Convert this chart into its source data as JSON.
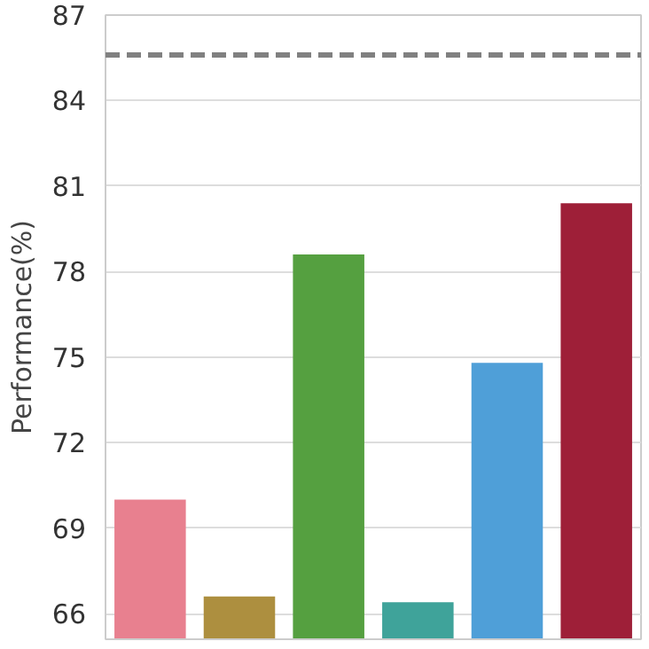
{
  "chart_data": {
    "type": "bar",
    "ylabel": "Performance(%)",
    "categories": [
      null,
      null,
      null,
      null,
      null,
      null
    ],
    "values": [
      70.0,
      66.6,
      78.6,
      66.4,
      74.8,
      80.4
    ],
    "colors": [
      "#e8808f",
      "#ad8f3f",
      "#55a040",
      "#3fa39a",
      "#4f9fd8",
      "#9e1f38"
    ],
    "ylim": [
      65.1,
      87
    ],
    "yticks": [
      66,
      69,
      72,
      75,
      78,
      81,
      84,
      87
    ],
    "grid": "y",
    "ref_lines": [
      {
        "axis": "y",
        "value": 85.6,
        "color": "#808080",
        "line_style": "dashed"
      }
    ]
  }
}
